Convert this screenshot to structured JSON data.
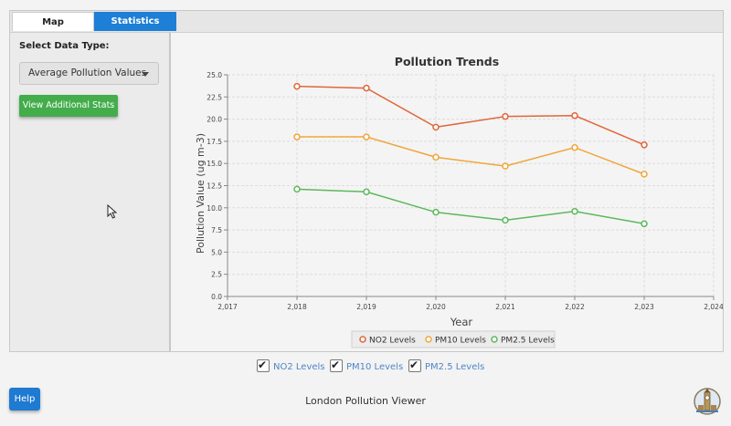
{
  "tabs": [
    {
      "label": "Map",
      "active": false
    },
    {
      "label": "Statistics",
      "active": true
    }
  ],
  "sidebar": {
    "select_label": "Select Data Type:",
    "dropdown_value": "Average Pollution Values",
    "stats_button": "View Additional Stats"
  },
  "chart_data": {
    "type": "line",
    "title": "Pollution Trends",
    "xlabel": "Year",
    "ylabel": "Pollution Value (ug m-3)",
    "xlim": [
      2017,
      2024
    ],
    "ylim": [
      0,
      25
    ],
    "x_ticks": [
      "2,017",
      "2,018",
      "2,019",
      "2,020",
      "2,021",
      "2,022",
      "2,023",
      "2,024"
    ],
    "y_ticks": [
      "0.0",
      "2.5",
      "5.0",
      "7.5",
      "10.0",
      "12.5",
      "15.0",
      "17.5",
      "20.0",
      "22.5",
      "25.0"
    ],
    "x": [
      2018,
      2019,
      2020,
      2021,
      2022,
      2023
    ],
    "series": [
      {
        "name": "NO2 Levels",
        "color": "#e0663a",
        "values": [
          23.7,
          23.5,
          19.1,
          20.3,
          20.4,
          17.1
        ]
      },
      {
        "name": "PM10 Levels",
        "color": "#f0a63a",
        "values": [
          18.0,
          18.0,
          15.7,
          14.7,
          16.8,
          13.8
        ]
      },
      {
        "name": "PM2.5 Levels",
        "color": "#5cb85c",
        "values": [
          12.1,
          11.8,
          9.5,
          8.6,
          9.6,
          8.2
        ]
      }
    ],
    "grid": true,
    "legend_position": "bottom"
  },
  "checkboxes": [
    {
      "label": "NO2 Levels",
      "checked": true
    },
    {
      "label": "PM10 Levels",
      "checked": true
    },
    {
      "label": "PM2.5 Levels",
      "checked": true
    }
  ],
  "footer": {
    "help_label": "Help",
    "app_title": "London Pollution Viewer"
  },
  "icons": {
    "cursor": "mouse-pointer-icon",
    "logo": "big-ben-logo-icon",
    "dropdown_caret": "caret-down-icon",
    "check": "checkmark-icon"
  },
  "colors": {
    "tab_active": "#1e7fd6",
    "stats_button": "#43ad4b",
    "help_button": "#1f7ad1",
    "checkbox_label": "#4f86c6"
  }
}
